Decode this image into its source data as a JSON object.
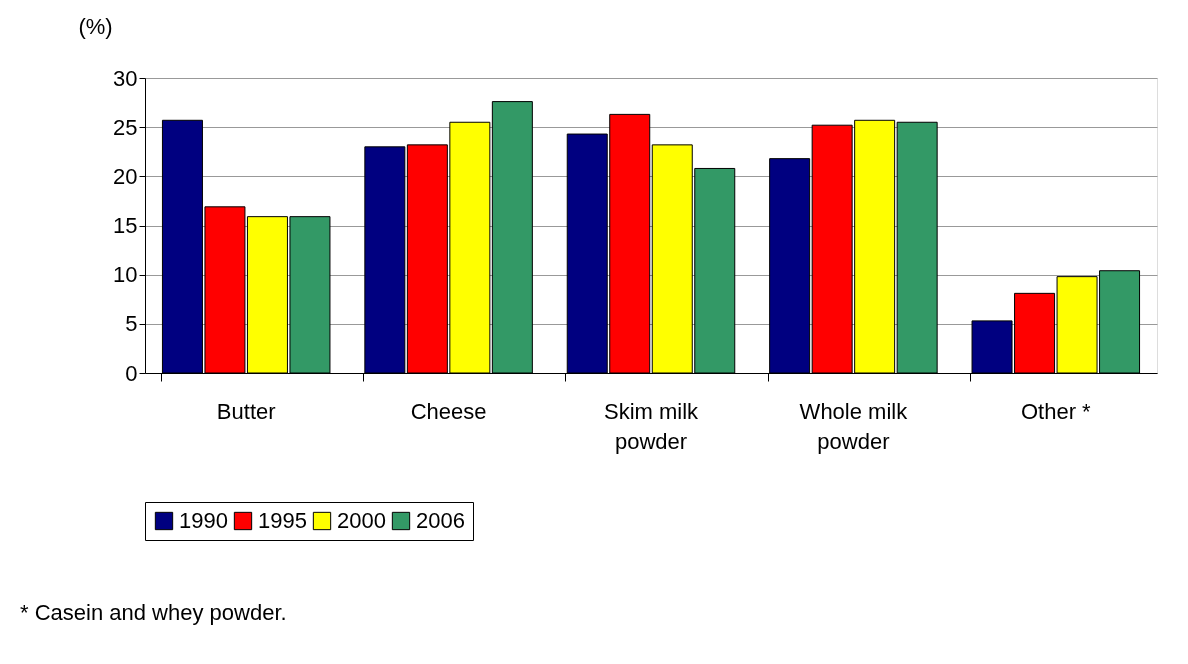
{
  "chart_data": {
    "type": "bar",
    "ylabel": "(%)",
    "categories": [
      "Butter",
      "Cheese",
      "Skim milk powder",
      "Whole milk powder",
      "Other *"
    ],
    "series": [
      {
        "name": "1990",
        "color": "#000080",
        "values": [
          25.7,
          23.0,
          24.3,
          21.8,
          5.3
        ]
      },
      {
        "name": "1995",
        "color": "#ff0000",
        "values": [
          16.9,
          23.2,
          26.3,
          25.2,
          8.1
        ]
      },
      {
        "name": "2000",
        "color": "#ffff00",
        "values": [
          15.9,
          25.5,
          23.2,
          25.7,
          9.8
        ]
      },
      {
        "name": "2006",
        "color": "#339966",
        "values": [
          15.9,
          27.6,
          20.8,
          25.5,
          10.4
        ]
      }
    ],
    "ylim": [
      0,
      30
    ],
    "yticks": [
      0,
      5,
      10,
      15,
      20,
      25,
      30
    ],
    "grid": "y",
    "legend": "bottom",
    "annotations": [
      "* Casein and whey powder."
    ]
  }
}
